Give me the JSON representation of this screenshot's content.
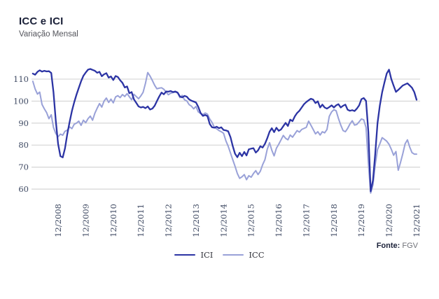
{
  "header": {
    "title": "ICC e ICI",
    "subtitle": "Variação Mensal"
  },
  "source": {
    "label": "Fonte:",
    "value": "FGV"
  },
  "colors": {
    "title": "#1a2038",
    "subtitle": "#54555c",
    "axis_text": "#3f4a63",
    "grid": "#d9d9d9",
    "source_label": "#1a2038",
    "source_value": "#6f7178"
  },
  "chart_data": {
    "type": "line",
    "title": "ICC e ICI",
    "subtitle": "Variação Mensal",
    "frequency": "monthly",
    "x_start": "01/2008",
    "x_end": "12/2021",
    "grid": "horizontal",
    "legend_position": "bottom",
    "y_ticks": [
      110,
      100,
      90,
      80,
      70,
      60
    ],
    "ylim": [
      56,
      117
    ],
    "x_ticks": [
      {
        "label": "12/2008",
        "month": 11
      },
      {
        "label": "12/2009",
        "month": 23
      },
      {
        "label": "12/2010",
        "month": 35
      },
      {
        "label": "12/2011",
        "month": 47
      },
      {
        "label": "12/2012",
        "month": 59
      },
      {
        "label": "12/2013",
        "month": 71
      },
      {
        "label": "12/2014",
        "month": 83
      },
      {
        "label": "12/2015",
        "month": 95
      },
      {
        "label": "12/2016",
        "month": 107
      },
      {
        "label": "12/2017",
        "month": 119
      },
      {
        "label": "12/2018",
        "month": 131
      },
      {
        "label": "12/2019",
        "month": 143
      },
      {
        "label": "12/2020",
        "month": 155
      },
      {
        "label": "12/2021",
        "month": 167
      }
    ],
    "series": [
      {
        "name": "ICI",
        "color": "#2c34a4",
        "values": [
          112.5,
          112.0,
          113.3,
          114.0,
          113.4,
          113.8,
          113.5,
          113.6,
          112.8,
          104.0,
          91.0,
          80.5,
          75.0,
          74.4,
          78.5,
          85.0,
          90.5,
          95.5,
          99.5,
          103.0,
          106.0,
          109.0,
          111.5,
          113.0,
          114.3,
          114.6,
          114.2,
          113.8,
          112.9,
          113.3,
          111.3,
          112.2,
          112.7,
          110.7,
          111.2,
          109.6,
          111.4,
          111.0,
          109.5,
          108.3,
          106.2,
          106.7,
          103.6,
          104.1,
          100.8,
          99.2,
          97.6,
          97.1,
          97.4,
          96.8,
          97.6,
          96.2,
          96.6,
          97.9,
          100.0,
          102.1,
          103.9,
          103.1,
          104.4,
          104.3,
          104.6,
          104.1,
          104.4,
          103.9,
          102.1,
          101.7,
          102.4,
          102.0,
          100.8,
          100.2,
          99.8,
          99.4,
          97.4,
          94.6,
          93.3,
          93.7,
          93.2,
          89.6,
          88.1,
          87.9,
          88.4,
          87.7,
          88.1,
          86.9,
          86.7,
          86.3,
          83.6,
          79.6,
          76.1,
          74.5,
          76.5,
          75.0,
          76.9,
          75.3,
          78.1,
          78.4,
          78.6,
          76.6,
          77.6,
          79.5,
          78.9,
          80.6,
          83.1,
          86.1,
          87.7,
          85.9,
          87.9,
          86.5,
          87.1,
          88.6,
          90.1,
          88.7,
          91.6,
          90.9,
          93.1,
          94.6,
          95.6,
          97.1,
          98.6,
          99.6,
          100.4,
          101.1,
          100.7,
          99.1,
          99.9,
          97.1,
          98.4,
          97.1,
          96.6,
          97.3,
          98.1,
          97.1,
          98.1,
          98.6,
          97.1,
          97.9,
          98.4,
          96.1,
          95.6,
          95.9,
          95.5,
          96.6,
          98.1,
          100.9,
          101.4,
          100.1,
          86.0,
          59.0,
          64.0,
          76.0,
          90.0,
          98.0,
          104.0,
          108.5,
          112.5,
          114.3,
          110.0,
          107.0,
          104.2,
          105.1,
          106.1,
          107.1,
          107.6,
          108.1,
          107.1,
          106.1,
          104.1,
          100.6
        ]
      },
      {
        "name": "ICC",
        "color": "#99a1d8",
        "values": [
          109.0,
          105.5,
          103.2,
          104.1,
          98.5,
          96.5,
          94.8,
          92.0,
          93.8,
          88.0,
          85.3,
          83.8,
          85.0,
          84.5,
          86.3,
          86.8,
          88.3,
          87.5,
          89.5,
          90.0,
          90.9,
          89.0,
          91.3,
          90.2,
          92.0,
          93.2,
          91.3,
          94.5,
          96.8,
          98.9,
          97.3,
          100.0,
          101.4,
          99.4,
          100.9,
          99.2,
          101.9,
          102.5,
          101.6,
          103.0,
          102.1,
          103.4,
          102.0,
          100.6,
          103.1,
          102.1,
          101.1,
          102.4,
          104.0,
          108.0,
          113.0,
          111.4,
          109.4,
          107.2,
          105.6,
          105.9,
          106.1,
          105.4,
          104.1,
          102.9,
          103.6,
          103.9,
          104.1,
          103.7,
          101.6,
          102.6,
          100.6,
          100.1,
          98.4,
          97.7,
          96.5,
          97.6,
          95.1,
          94.4,
          93.9,
          94.6,
          94.1,
          91.9,
          90.3,
          88.1,
          87.4,
          86.6,
          86.1,
          85.4,
          82.0,
          79.5,
          76.4,
          73.4,
          70.4,
          67.1,
          64.9,
          65.6,
          66.6,
          64.3,
          66.1,
          65.4,
          67.1,
          68.4,
          66.6,
          68.1,
          71.1,
          73.4,
          78.1,
          81.1,
          77.7,
          75.1,
          78.6,
          80.4,
          82.4,
          84.4,
          83.1,
          82.4,
          84.6,
          83.6,
          85.1,
          86.6,
          85.9,
          87.1,
          87.6,
          88.1,
          90.9,
          89.1,
          87.1,
          85.1,
          86.1,
          84.6,
          86.1,
          85.6,
          87.1,
          93.1,
          95.1,
          96.1,
          95.6,
          92.1,
          89.1,
          86.6,
          86.1,
          87.6,
          89.6,
          91.1,
          89.1,
          89.4,
          90.6,
          91.9,
          91.5,
          88.0,
          72.0,
          58.2,
          62.0,
          71.0,
          78.0,
          80.6,
          83.4,
          82.6,
          81.8,
          80.4,
          78.1,
          75.4,
          77.1,
          68.6,
          72.1,
          76.1,
          80.6,
          82.4,
          79.1,
          76.6,
          75.9,
          75.9
        ]
      }
    ]
  }
}
